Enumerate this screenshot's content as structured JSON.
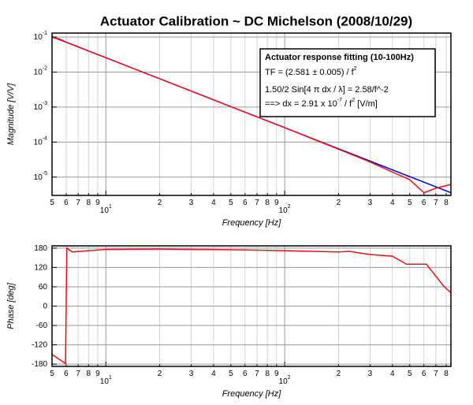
{
  "chart_data": [
    {
      "type": "line",
      "title": "Actuator Calibration ~ DC Michelson (2008/10/29)",
      "x_label": "Frequency [Hz]",
      "y_label": "Magnitude [V/V]",
      "xlog": true,
      "ylog": true,
      "grid": true,
      "xlim": [
        5,
        850
      ],
      "ylim": [
        3e-06,
        0.13
      ],
      "xticks": [
        5,
        6,
        7,
        8,
        9,
        {
          "value": 10,
          "label": "10",
          "sup": "1"
        },
        {
          "value": 20,
          "label": "2"
        },
        {
          "value": 30,
          "label": "3"
        },
        {
          "value": 40,
          "label": "4"
        },
        {
          "value": 50,
          "label": "5"
        },
        {
          "value": 60,
          "label": "6"
        },
        {
          "value": 70,
          "label": "7"
        },
        {
          "value": 80,
          "label": "8"
        },
        {
          "value": 90,
          "label": "9"
        },
        {
          "value": 100,
          "label": "10",
          "sup": "2"
        },
        {
          "value": 200,
          "label": "2"
        },
        {
          "value": 300,
          "label": "3"
        },
        {
          "value": 400,
          "label": "4"
        },
        {
          "value": 500,
          "label": "5"
        },
        {
          "value": 600,
          "label": "6"
        },
        {
          "value": 700,
          "label": "7"
        },
        {
          "value": 800,
          "label": "8"
        }
      ],
      "yticks": [
        {
          "value": 0.1,
          "label": "10",
          "sup": "-1"
        },
        {
          "value": 0.01,
          "label": "10",
          "sup": "-2"
        },
        {
          "value": 0.001,
          "label": "10",
          "sup": "-3"
        },
        {
          "value": 0.0001,
          "label": "10",
          "sup": "-4"
        },
        {
          "value": 1e-05,
          "label": "10",
          "sup": "-5"
        }
      ],
      "annotation": [
        [
          "Actuator response fitting (10-100Hz)"
        ],
        [
          "TF = (2.581 ± 0.005) / f",
          "2"
        ],
        [
          "1.50/2 Sin[4  π dx / λ] = 2.58/f^-2"
        ],
        [
          "==> dx = 2.91 x 10",
          "-7",
          " / f",
          "2",
          " [V/m]"
        ]
      ],
      "series": [
        {
          "color": "#0000cc",
          "x": [
            5,
            850
          ],
          "values": [
            0.1032,
            3.57e-06
          ]
        },
        {
          "color": "#ee1111",
          "x": [
            5,
            5.5,
            6,
            7,
            8,
            10,
            15,
            20,
            30,
            50,
            70,
            100,
            150,
            200,
            300,
            400,
            500,
            600,
            700,
            850
          ],
          "values": [
            0.098,
            0.088,
            0.072,
            0.053,
            0.04,
            0.026,
            0.0115,
            0.0065,
            0.0029,
            0.00103,
            0.00053,
            0.00026,
            0.000113,
            6.3e-05,
            2.7e-05,
            1.4e-05,
            8.5e-06,
            3.6e-06,
            4.8e-06,
            6.2e-06
          ]
        }
      ]
    },
    {
      "type": "line",
      "x_label": "Frequency [Hz]",
      "y_label": "Phase [deg]",
      "xlog": true,
      "ylog": false,
      "grid": true,
      "xlim": [
        5,
        850
      ],
      "ylim": [
        -187,
        187
      ],
      "xticks": [
        5,
        6,
        7,
        8,
        9,
        {
          "value": 10,
          "label": "10",
          "sup": "1"
        },
        {
          "value": 20,
          "label": "2"
        },
        {
          "value": 30,
          "label": "3"
        },
        {
          "value": 40,
          "label": "4"
        },
        {
          "value": 50,
          "label": "5"
        },
        {
          "value": 60,
          "label": "6"
        },
        {
          "value": 70,
          "label": "7"
        },
        {
          "value": 80,
          "label": "8"
        },
        {
          "value": 90,
          "label": "9"
        },
        {
          "value": 100,
          "label": "10",
          "sup": "2"
        },
        {
          "value": 200,
          "label": "2"
        },
        {
          "value": 300,
          "label": "3"
        },
        {
          "value": 400,
          "label": "4"
        },
        {
          "value": 500,
          "label": "5"
        },
        {
          "value": 600,
          "label": "6"
        },
        {
          "value": 700,
          "label": "7"
        },
        {
          "value": 800,
          "label": "8"
        }
      ],
      "yticks": [
        180,
        120,
        60,
        0,
        -60,
        -120,
        -180
      ],
      "series": [
        {
          "color": "#ee1111",
          "x": [
            5,
            5.95,
            6.05,
            6.5,
            8,
            10,
            20,
            50,
            100,
            200,
            230,
            300,
            400,
            480,
            620,
            780,
            850
          ],
          "values": [
            -150,
            -178,
            180,
            168,
            172,
            176,
            177,
            175,
            172,
            168,
            170,
            160,
            155,
            130,
            130,
            60,
            42
          ]
        }
      ]
    }
  ]
}
